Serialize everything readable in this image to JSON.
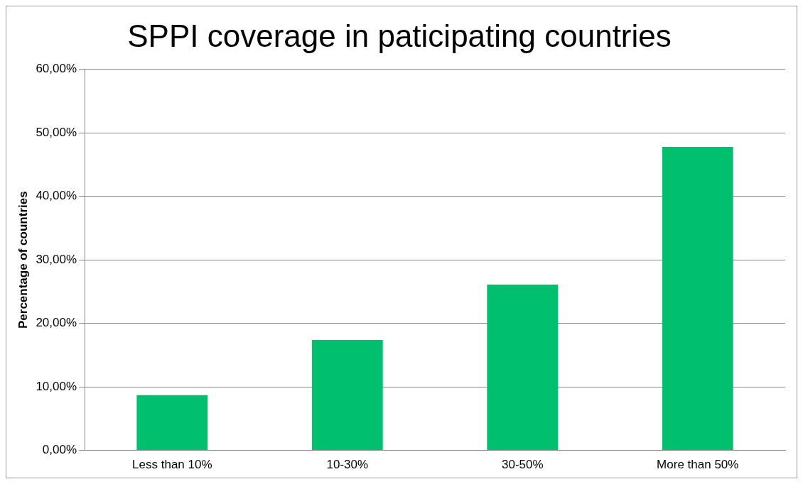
{
  "chart_data": {
    "type": "bar",
    "title": "SPPI coverage in paticipating countries",
    "ylabel": "Percentage of countries",
    "categories": [
      "Less than 10%",
      "10-30%",
      "30-50%",
      "More than 50%"
    ],
    "values": [
      8.7,
      17.4,
      26.1,
      47.8
    ],
    "color": "#00bf6f",
    "ylim": [
      0,
      60
    ],
    "yticks": [
      {
        "value": 0,
        "label": "0,00%"
      },
      {
        "value": 10,
        "label": "10,00%"
      },
      {
        "value": 20,
        "label": "20,00%"
      },
      {
        "value": 30,
        "label": "30,00%"
      },
      {
        "value": 40,
        "label": "40,00%"
      },
      {
        "value": 50,
        "label": "50,00%"
      },
      {
        "value": 60,
        "label": "60,00%"
      }
    ],
    "grid": "y",
    "legend": false
  }
}
